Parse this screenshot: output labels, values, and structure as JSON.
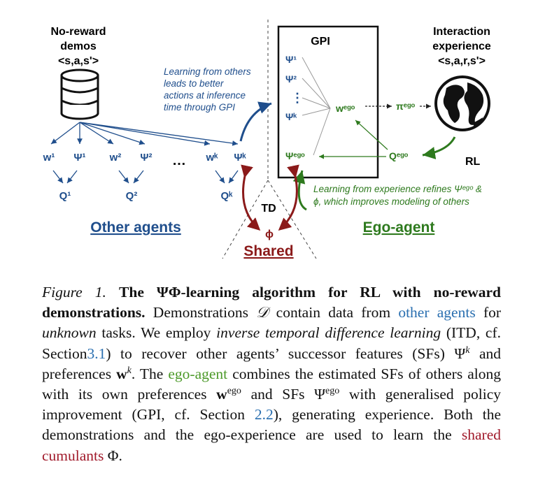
{
  "diagram": {
    "demos_title_1": "No-reward",
    "demos_title_2": "demos",
    "demos_tuple": "<s,a,s'>",
    "interaction_title_1": "Interaction",
    "interaction_title_2": "experience",
    "interaction_tuple": "<s,a,r,s'>",
    "gpi_label": "GPI",
    "psi_1": "Ψ¹",
    "psi_2": "Ψ²",
    "dots_vertical": "⋮",
    "psi_k": "Ψᵏ",
    "psi_ego": "Ψᵉᵍᵒ",
    "w_ego": "wᵉᵍᵒ",
    "pi_ego": "πᵉᵍᵒ",
    "q_ego": "Qᵉᵍᵒ",
    "rl_label": "RL",
    "td_label": "TD",
    "phi_label": "ϕ",
    "shared_label": "Shared",
    "other_agents_label": "Other agents",
    "ego_agent_label": "Ego-agent",
    "blue_note": [
      "Learning from others",
      "leads to better",
      "actions at inference",
      "time through GPI"
    ],
    "green_note": [
      "Learning from experience refines Ψᵉᵍᵒ &",
      "ϕ, which improves modeling of others"
    ],
    "w1": "w¹",
    "psi1": "Ψ¹",
    "w2": "w²",
    "psi2": "Ψ²",
    "hdots": "…",
    "wk": "wᵏ",
    "psik": "Ψᵏ",
    "q1": "Q¹",
    "q2": "Q²",
    "qk": "Qᵏ"
  },
  "caption": {
    "figure_label": "Figure 1.",
    "title": "The ΨΦ-learning algorithm for RL with no-reward demonstrations.",
    "s1": "Demonstrations",
    "calD": "𝒟",
    "s2": "contain data from",
    "other_agents_link": "other agents",
    "s3": "for",
    "unknown": "unknown",
    "s4": "tasks. We employ",
    "itd": "inverse temporal difference learning",
    "s5": "(ITD, cf. Section",
    "sec31": "3.1",
    "s6": ") to recover other agents’ successor features (SFs) Ψ",
    "k": "k",
    "s7": "and preferences",
    "wbold": "w",
    "s8": ". The",
    "ego_agent_link": "ego-agent",
    "s9": "combines the estimated SFs of others along with its own preferences",
    "ego": "ego",
    "s10": "and SFs Ψ",
    "s11": "with generalised policy improvement (GPI, cf. Section",
    "sec22": "2.2",
    "s12": "), generating experience. Both the demonstrations and the ego-experience are used to learn the",
    "shared_cumulants_link": "shared cumulants",
    "s13": "Φ."
  },
  "colors": {
    "blue": "#1f4e8c",
    "link_blue": "#2a6fb0",
    "green": "#2e7a1e",
    "dark_red": "#8b1a1a"
  }
}
